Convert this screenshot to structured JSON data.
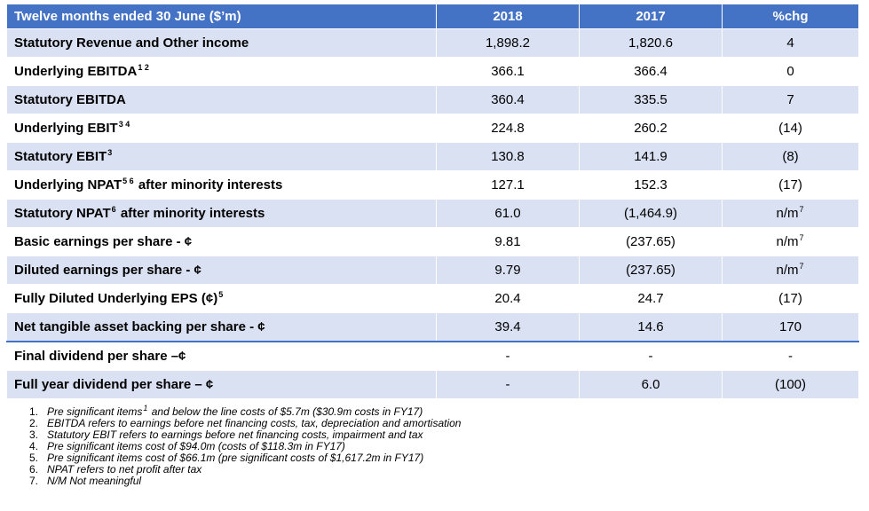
{
  "table": {
    "headers": [
      "Twelve months ended 30 June ($’m)",
      "2018",
      "2017",
      "%chg"
    ],
    "rows": [
      {
        "label": "Statutory Revenue and Other income",
        "sup": "",
        "label_after": "",
        "v2018": "1,898.2",
        "v2017": "1,820.6",
        "chg": "4",
        "chg_sup": ""
      },
      {
        "label": "Underlying EBITDA",
        "sup": "1 2",
        "label_after": "",
        "v2018": "366.1",
        "v2017": "366.4",
        "chg": "0",
        "chg_sup": ""
      },
      {
        "label": "Statutory EBITDA",
        "sup": "",
        "label_after": "",
        "v2018": "360.4",
        "v2017": "335.5",
        "chg": "7",
        "chg_sup": ""
      },
      {
        "label": "Underlying EBIT",
        "sup": "3 4",
        "label_after": "",
        "v2018": "224.8",
        "v2017": "260.2",
        "chg": "(14)",
        "chg_sup": ""
      },
      {
        "label": "Statutory EBIT",
        "sup": "3",
        "label_after": "",
        "v2018": "130.8",
        "v2017": "141.9",
        "chg": "(8)",
        "chg_sup": ""
      },
      {
        "label": "Underlying NPAT",
        "sup": "5 6",
        "label_after": "after minority interests",
        "v2018": "127.1",
        "v2017": "152.3",
        "chg": "(17)",
        "chg_sup": ""
      },
      {
        "label": "Statutory NPAT",
        "sup": "6",
        "label_after": "after minority interests",
        "v2018": "61.0",
        "v2017": "(1,464.9)",
        "chg": "n/m",
        "chg_sup": "7"
      },
      {
        "label": "Basic earnings per share - ¢",
        "sup": "",
        "label_after": "",
        "v2018": "9.81",
        "v2017": "(237.65)",
        "chg": "n/m",
        "chg_sup": "7"
      },
      {
        "label": "Diluted earnings per share - ¢",
        "sup": "",
        "label_after": "",
        "v2018": "9.79",
        "v2017": "(237.65)",
        "chg": "n/m",
        "chg_sup": "7"
      },
      {
        "label": "Fully Diluted Underlying EPS (¢)",
        "sup": "5",
        "label_after": "",
        "v2018": "20.4",
        "v2017": "24.7",
        "chg": "(17)",
        "chg_sup": ""
      },
      {
        "label": "Net tangible asset backing per share - ¢",
        "sup": "",
        "label_after": "",
        "v2018": "39.4",
        "v2017": "14.6",
        "chg": "170",
        "chg_sup": ""
      },
      {
        "label": "Final dividend per share –¢",
        "sup": "",
        "label_after": "",
        "v2018": "-",
        "v2017": "-",
        "chg": "-",
        "chg_sup": ""
      },
      {
        "label": "Full year dividend per share – ¢",
        "sup": "",
        "label_after": "",
        "v2018": "-",
        "v2017": "6.0",
        "chg": "(100)",
        "chg_sup": ""
      }
    ]
  },
  "footnotes": [
    {
      "num": "1.",
      "text": "Pre significant items",
      "sup": "1",
      "text_after": " and below the line costs of $5.7m ($30.9m costs in FY17)"
    },
    {
      "num": "2.",
      "text": "EBITDA refers to earnings before net financing costs, tax, depreciation and amortisation",
      "sup": "",
      "text_after": ""
    },
    {
      "num": "3.",
      "text": "Statutory EBIT refers to earnings before net financing costs, impairment and tax",
      "sup": "",
      "text_after": ""
    },
    {
      "num": "4.",
      "text": "Pre significant items cost of $94.0m (costs of $118.3m in FY17)",
      "sup": "",
      "text_after": ""
    },
    {
      "num": "5.",
      "text": "Pre significant items cost of $66.1m (pre significant costs of $1,617.2m in FY17)",
      "sup": "",
      "text_after": ""
    },
    {
      "num": "6.",
      "text": "NPAT refers to net profit after tax",
      "sup": "",
      "text_after": ""
    },
    {
      "num": "7.",
      "text": "N/M Not meaningful",
      "sup": "",
      "text_after": ""
    }
  ],
  "colors": {
    "header_bg": "#4472c4",
    "shade_bg": "#d9e1f2"
  }
}
